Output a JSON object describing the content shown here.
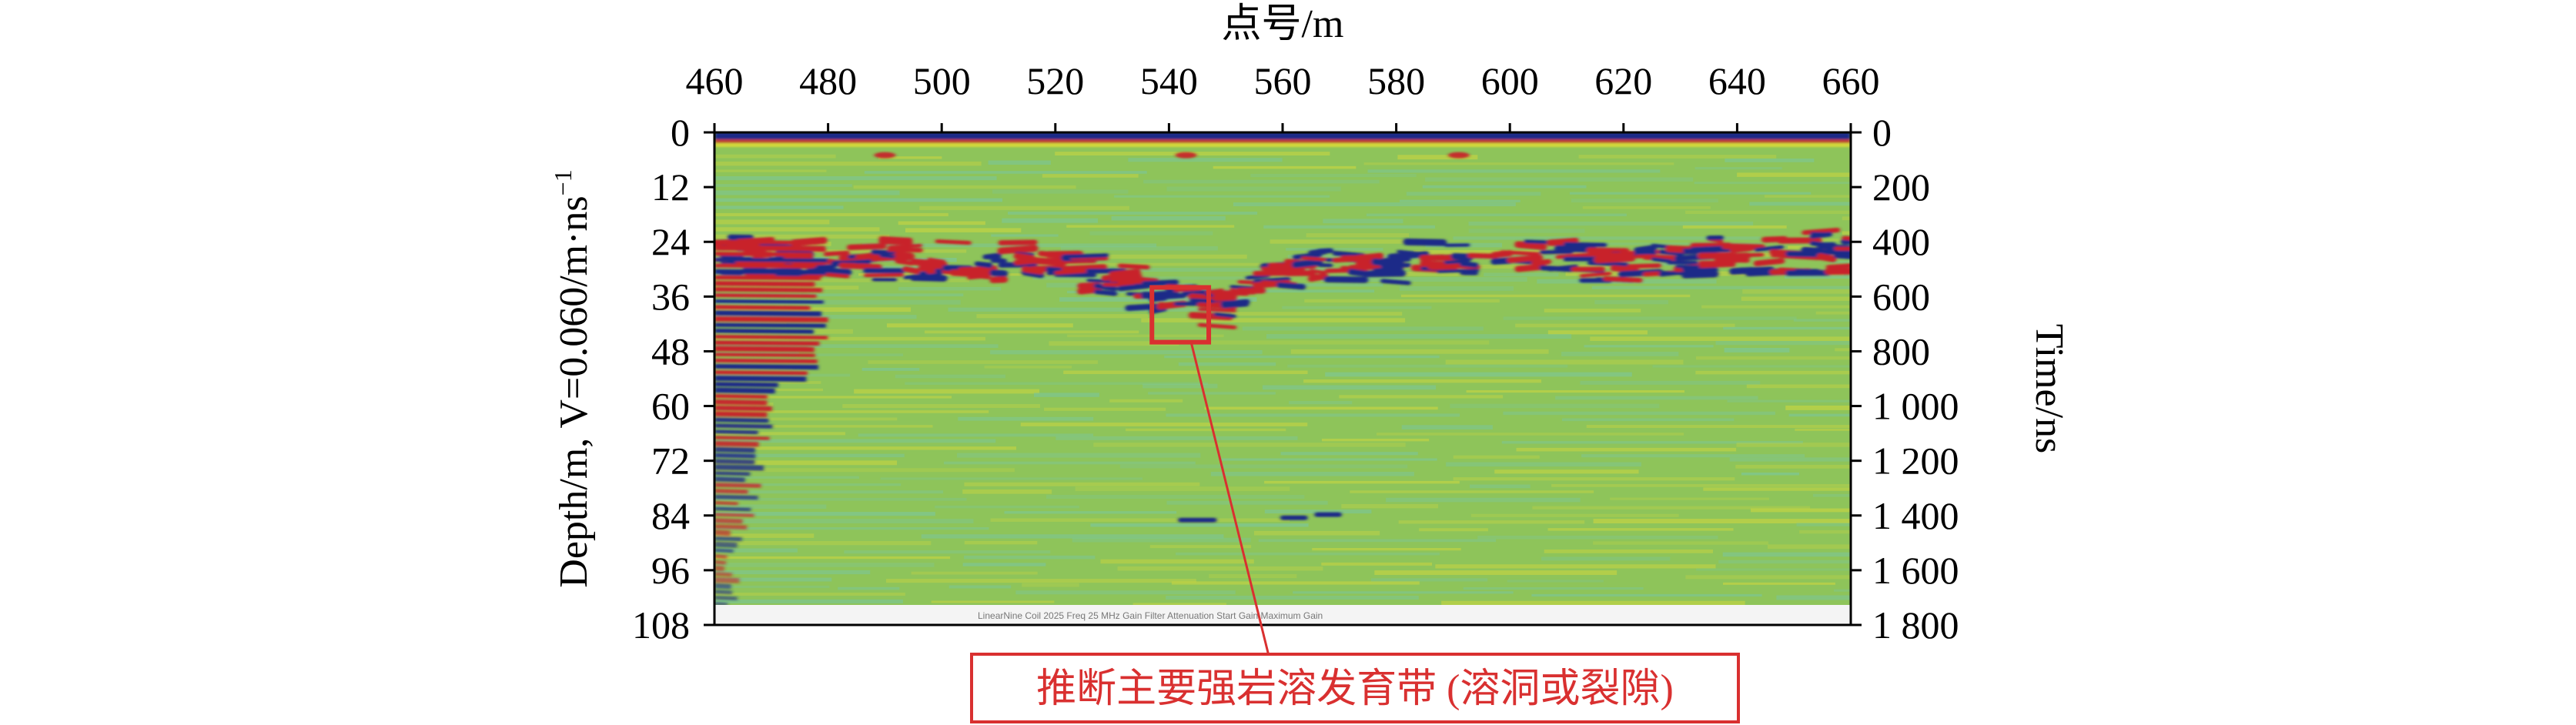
{
  "chart_data": {
    "type": "heatmap",
    "title": "",
    "top_axis": {
      "label": "点号/m",
      "ticks": [
        "460",
        "480",
        "500",
        "520",
        "540",
        "560",
        "580",
        "600",
        "620",
        "640",
        "660"
      ],
      "range": [
        460,
        660
      ]
    },
    "left_axis": {
      "label": "Depth/m, V=0.060/m·ns",
      "label_superscript": "−1",
      "ticks": [
        "0",
        "12",
        "24",
        "36",
        "48",
        "60",
        "72",
        "84",
        "96",
        "108"
      ],
      "range": [
        0,
        108
      ],
      "inverted": true
    },
    "right_axis": {
      "label": "Time/ns",
      "ticks": [
        "0",
        "200",
        "400",
        "600",
        "800",
        "1 000",
        "1 200",
        "1 400",
        "1 600",
        "1 800"
      ],
      "range": [
        0,
        1800
      ],
      "inverted": true
    },
    "grid": false,
    "annotation": {
      "text": "推断主要强岩溶发育带 (溶洞或裂隙)",
      "box_x_range": [
        537,
        547
      ],
      "box_depth_range": [
        34,
        46
      ],
      "color": "#d93030"
    },
    "colors": {
      "background_field": "#8ec45a",
      "positive_reflection": "#c8202a",
      "negative_reflection": "#1e2a88",
      "highlight": "#f0e030",
      "trough": "#6ec8c8"
    }
  }
}
